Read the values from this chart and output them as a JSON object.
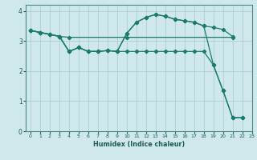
{
  "xlabel": "Humidex (Indice chaleur)",
  "bg_color": "#cfe8ec",
  "grid_color": "#a8c8d0",
  "line_color": "#1a7a6e",
  "xlim": [
    -0.5,
    23
  ],
  "ylim": [
    0,
    4.2
  ],
  "xticks": [
    0,
    1,
    2,
    3,
    4,
    5,
    6,
    7,
    8,
    9,
    10,
    11,
    12,
    13,
    14,
    15,
    16,
    17,
    18,
    19,
    20,
    21,
    22,
    23
  ],
  "yticks": [
    0,
    1,
    2,
    3,
    4
  ],
  "line1_x": [
    0,
    1,
    2,
    3,
    4,
    10,
    21
  ],
  "line1_y": [
    3.35,
    3.28,
    3.22,
    3.15,
    3.12,
    3.12,
    3.12
  ],
  "line2_x": [
    0,
    1,
    2,
    3,
    4,
    5,
    6,
    7,
    8,
    9,
    10,
    11,
    12,
    13,
    14,
    15,
    16,
    17,
    18,
    19,
    20,
    21,
    22
  ],
  "line2_y": [
    3.35,
    3.28,
    3.22,
    3.15,
    2.65,
    2.78,
    2.65,
    2.65,
    2.68,
    2.65,
    2.65,
    2.65,
    2.65,
    2.65,
    2.65,
    2.65,
    2.65,
    2.65,
    2.65,
    2.2,
    1.35,
    0.45,
    0.45
  ],
  "line3_x": [
    0,
    1,
    2,
    3,
    4,
    5,
    6,
    7,
    8,
    9,
    10,
    11,
    12,
    13,
    14,
    15,
    16,
    17,
    18,
    19,
    20,
    21
  ],
  "line3_y": [
    3.35,
    3.28,
    3.22,
    3.15,
    2.65,
    2.78,
    2.65,
    2.65,
    2.68,
    2.65,
    3.25,
    3.62,
    3.78,
    3.88,
    3.82,
    3.72,
    3.67,
    3.62,
    3.5,
    3.45,
    3.38,
    3.15
  ],
  "line4_x": [
    0,
    1,
    2,
    3,
    4,
    5,
    6,
    7,
    8,
    9,
    10,
    11,
    12,
    13,
    14,
    15,
    16,
    17,
    18,
    19,
    20,
    21,
    22
  ],
  "line4_y": [
    3.35,
    3.28,
    3.22,
    3.15,
    2.65,
    2.78,
    2.65,
    2.65,
    2.68,
    2.65,
    3.25,
    3.62,
    3.78,
    3.88,
    3.82,
    3.72,
    3.67,
    3.62,
    3.5,
    2.2,
    1.35,
    0.45,
    0.45
  ]
}
